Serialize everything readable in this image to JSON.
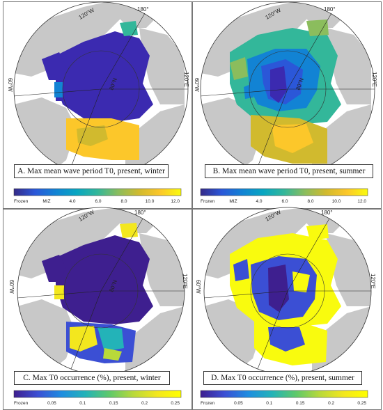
{
  "panels": [
    {
      "id": "A",
      "caption": "A. Max mean wave period T0, present, winter",
      "lon_labels": {
        "top": "120°W",
        "left": "60°W",
        "topright": "180°",
        "right": "120°E"
      },
      "lat_label": "80°N",
      "colorbar": {
        "ticks": [
          "Frozen",
          "MIZ",
          "4.0",
          "6.0",
          "8.0",
          "10.0",
          "12.0"
        ],
        "scheme": "parula"
      }
    },
    {
      "id": "B",
      "caption": "B. Max mean wave period T0, present, summer",
      "lon_labels": {
        "top": "120°W",
        "left": "60°W",
        "topright": "180°",
        "right": "120°E"
      },
      "lat_label": "80°N",
      "colorbar": {
        "ticks": [
          "Frozen",
          "MIZ",
          "4.0",
          "6.0",
          "8.0",
          "10.0",
          "12.0"
        ],
        "scheme": "parula"
      }
    },
    {
      "id": "C",
      "caption": "C. Max T0 occurrence (%), present, winter",
      "lon_labels": {
        "top": "120°W",
        "left": "60°W",
        "topright": "180°",
        "right": "120°E"
      },
      "lat_label": "80°N",
      "colorbar": {
        "ticks": [
          "Frozen",
          "0.05",
          "0.1",
          "0.15",
          "0.2",
          "0.25"
        ],
        "scheme": "viridis"
      }
    },
    {
      "id": "D",
      "caption": "D. Max T0 occurrence (%), present, summer",
      "lon_labels": {
        "top": "120°W",
        "left": "60°W",
        "topright": "180°",
        "right": "120°E"
      },
      "lat_label": "",
      "colorbar": {
        "ticks": [
          "Frozen",
          "0.05",
          "0.1",
          "0.15",
          "0.2",
          "0.25"
        ],
        "scheme": "viridis"
      }
    }
  ],
  "colors": {
    "land": "#c8c8c8",
    "frozen": "#3b2ab0",
    "parula": [
      "#352a87",
      "#2b57d8",
      "#1283d4",
      "#08a6c1",
      "#33b79a",
      "#8bbd5d",
      "#d1ba2e",
      "#fcc72a",
      "#f9fb0e"
    ],
    "viridis": [
      "#3e1f8f",
      "#3b4fd4",
      "#1e8de0",
      "#23b3b8",
      "#5ec96a",
      "#b9d93a",
      "#f3e71e",
      "#ffff00"
    ]
  }
}
